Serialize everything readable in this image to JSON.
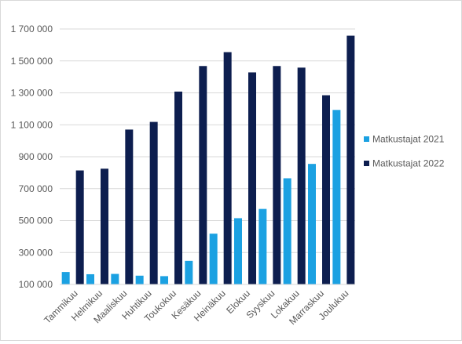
{
  "chart_data": {
    "type": "bar",
    "title": "",
    "xlabel": "",
    "ylabel": "",
    "ylim": [
      100000,
      1700000
    ],
    "yticks": [
      100000,
      300000,
      500000,
      700000,
      900000,
      1100000,
      1300000,
      1500000,
      1700000
    ],
    "ytick_labels": [
      "100 000",
      "300 000",
      "500 000",
      "700 000",
      "900 000",
      "1 100 000",
      "1 300 000",
      "1 500 000",
      "1 700 000"
    ],
    "grid": true,
    "legend_position": "right",
    "categories": [
      "Tammikuu",
      "Helmikuu",
      "Maaliskuu",
      "Huhtikuu",
      "Toukokuu",
      "Kesäkuu",
      "Heinäkuu",
      "Elokuu",
      "Syyskuu",
      "Lokakuu",
      "Marraskuu",
      "Joulukuu"
    ],
    "series": [
      {
        "name": "Matkustajat 2021",
        "color": "#1ba1e2",
        "values": [
          178000,
          164000,
          166000,
          155000,
          152000,
          248000,
          418000,
          515000,
          573000,
          765000,
          855000,
          1193000
        ]
      },
      {
        "name": "Matkustajat 2022",
        "color": "#0d1e4f",
        "values": [
          814000,
          825000,
          1070000,
          1118000,
          1308000,
          1468000,
          1555000,
          1428000,
          1468000,
          1458000,
          1285000,
          1658000
        ]
      }
    ]
  }
}
